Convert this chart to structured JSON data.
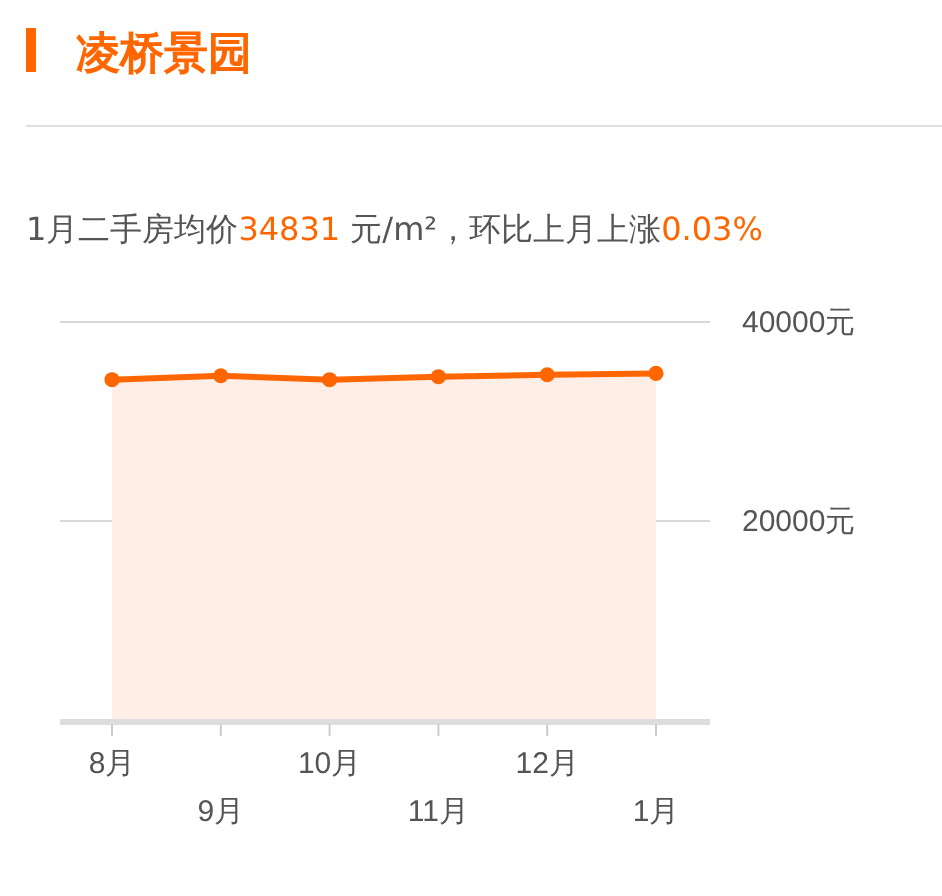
{
  "chart_data": {
    "type": "area",
    "title": "凌桥景园",
    "subtitle": "1月二手房均价34831 元/m²，环比上月上涨0.03%",
    "categories": [
      "8月",
      "9月",
      "10月",
      "11月",
      "12月",
      "1月"
    ],
    "series": [
      {
        "color": "#ff6600",
        "values": [
          34200,
          34600,
          34200,
          34500,
          34700,
          34831
        ]
      }
    ],
    "ylim": [
      0,
      40000
    ],
    "yticks": [
      {
        "value": 0,
        "label": null
      },
      {
        "value": 20000,
        "label": "20000元"
      },
      {
        "value": 40000,
        "label": "40000元"
      }
    ],
    "grid": "y",
    "marker": "circle",
    "line_style": "solid"
  }
}
